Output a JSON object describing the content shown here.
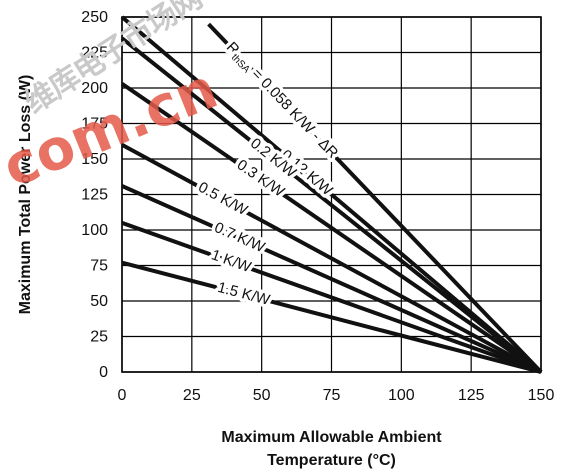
{
  "chart_data": {
    "type": "line",
    "xlabel": "Maximum Allowable Ambient Temperature (°C)",
    "xlabel_lines": [
      "Maximum Allowable Ambient",
      "Temperature (°C)"
    ],
    "ylabel": "Maximum Total Power Loss (W)",
    "xlim": [
      0,
      150
    ],
    "ylim": [
      0,
      250
    ],
    "xticks": [
      0,
      25,
      50,
      75,
      100,
      125,
      150
    ],
    "yticks": [
      0,
      25,
      50,
      75,
      100,
      125,
      150,
      175,
      200,
      225,
      250
    ],
    "grid": true,
    "series": [
      {
        "name": "RthSA = 0.058 K/W - ΔR",
        "x": [
          31,
          150
        ],
        "y": [
          245,
          0
        ],
        "label_main": "R",
        "label_sub": "thSA",
        "label_rest": " = 0.058 K/W - ΔR"
      },
      {
        "name": "0.12 K/W",
        "x": [
          0,
          150
        ],
        "y": [
          250,
          0
        ],
        "label_main": "0.12 K/W"
      },
      {
        "name": "0.2 K/W",
        "x": [
          0,
          150
        ],
        "y": [
          235,
          0
        ],
        "label_main": "0.2 K/W"
      },
      {
        "name": "0.3 K/W",
        "x": [
          0,
          150
        ],
        "y": [
          203,
          0
        ],
        "label_main": "0.3 K/W"
      },
      {
        "name": "0.5 K/W",
        "x": [
          0,
          150
        ],
        "y": [
          160,
          0
        ],
        "label_main": "0.5 K/W"
      },
      {
        "name": "0.7 K/W",
        "x": [
          0,
          150
        ],
        "y": [
          131,
          0
        ],
        "label_main": "0.7 K/W"
      },
      {
        "name": "1 K/W",
        "x": [
          0,
          150
        ],
        "y": [
          105,
          0
        ],
        "label_main": "1 K/W"
      },
      {
        "name": "1.5 K/W",
        "x": [
          0,
          150
        ],
        "y": [
          77,
          0
        ],
        "label_main": "1.5 K/W"
      }
    ]
  },
  "watermark": {
    "text_1": "维库电子市场网",
    "text_2": "com.cn"
  },
  "colors": {
    "line": "#111111",
    "grid": "#000000",
    "watermark": "#e45a4a"
  }
}
